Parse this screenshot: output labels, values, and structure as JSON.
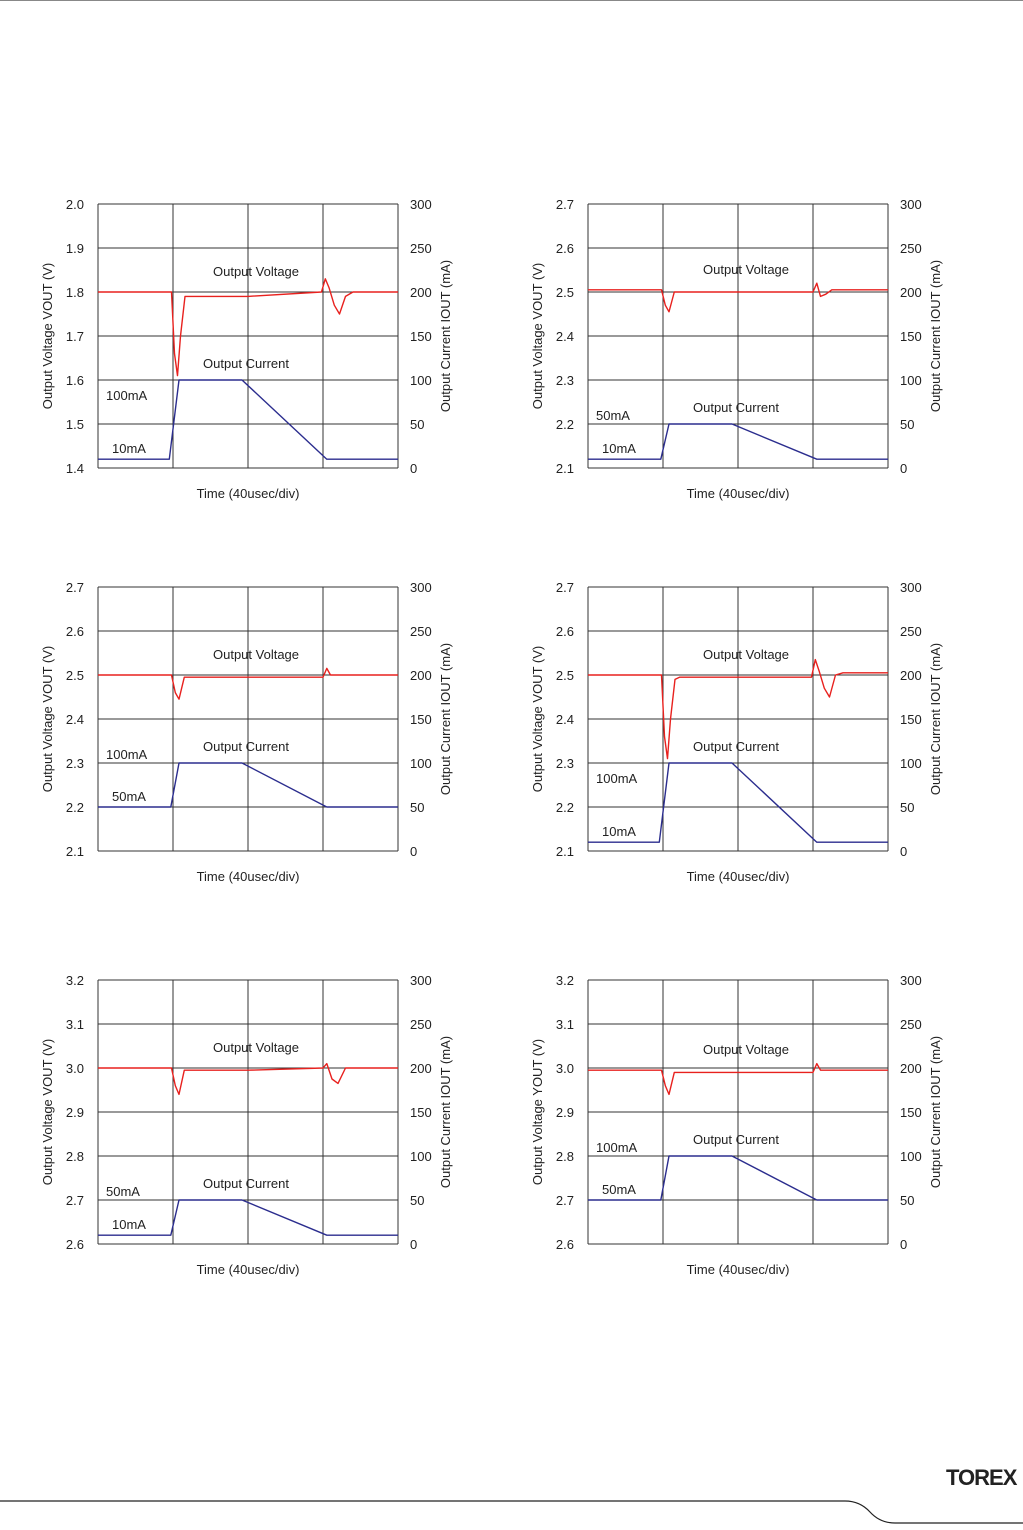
{
  "brand": {
    "logo_text": "TOREX"
  },
  "chart_data": [
    {
      "type": "line",
      "xlabel": "Time (40usec/div)",
      "ylabel": "Output Voltage VOUT (V)",
      "y2label": "Output Current IOUT (mA)",
      "ylim": [
        1.4,
        2.0
      ],
      "y_ticks": [
        "1.4",
        "1.5",
        "1.6",
        "1.7",
        "1.8",
        "1.9",
        "2.0"
      ],
      "y2lim": [
        0,
        300
      ],
      "y2_ticks": [
        "0",
        "50",
        "100",
        "150",
        "200",
        "250",
        "300"
      ],
      "x_divisions": 4,
      "annotations": {
        "voltage_label": "Output Voltage",
        "current_label": "Output Current",
        "high_current": "100mA",
        "low_current": "10mA"
      },
      "series": [
        {
          "name": "Output Voltage",
          "color": "#e8211e",
          "axis": "left",
          "x": [
            0,
            0.98,
            1.02,
            1.06,
            1.1,
            1.16,
            1.22,
            2.0,
            2.98,
            3.03,
            3.08,
            3.15,
            3.22,
            3.3,
            3.4,
            4.0
          ],
          "y": [
            1.8,
            1.8,
            1.66,
            1.61,
            1.7,
            1.79,
            1.79,
            1.79,
            1.8,
            1.83,
            1.81,
            1.77,
            1.75,
            1.79,
            1.8,
            1.8
          ]
        },
        {
          "name": "Output Current",
          "color": "#2b2d8e",
          "axis": "right",
          "x": [
            0,
            0.95,
            1.08,
            1.92,
            3.05,
            4.0
          ],
          "y": [
            10,
            10,
            100,
            100,
            10,
            10
          ]
        }
      ]
    },
    {
      "type": "line",
      "xlabel": "Time (40usec/div)",
      "ylabel": "Output Voltage VOUT (V)",
      "y2label": "Output Current IOUT (mA)",
      "ylim": [
        2.1,
        2.7
      ],
      "y_ticks": [
        "2.1",
        "2.2",
        "2.3",
        "2.4",
        "2.5",
        "2.6",
        "2.7"
      ],
      "y2lim": [
        0,
        300
      ],
      "y2_ticks": [
        "0",
        "50",
        "100",
        "150",
        "200",
        "250",
        "300"
      ],
      "x_divisions": 4,
      "annotations": {
        "voltage_label": "Output Voltage",
        "current_label": "Output Current",
        "high_current": "50mA",
        "low_current": "10mA"
      },
      "series": [
        {
          "name": "Output Voltage",
          "color": "#e8211e",
          "axis": "left",
          "x": [
            0,
            0.98,
            1.03,
            1.08,
            1.15,
            2.0,
            3.0,
            3.05,
            3.1,
            3.17,
            3.25,
            4.0
          ],
          "y": [
            2.505,
            2.505,
            2.47,
            2.455,
            2.5,
            2.5,
            2.5,
            2.52,
            2.49,
            2.495,
            2.505,
            2.505
          ]
        },
        {
          "name": "Output Current",
          "color": "#2b2d8e",
          "axis": "right",
          "x": [
            0,
            0.97,
            1.08,
            1.92,
            3.05,
            4.0
          ],
          "y": [
            10,
            10,
            50,
            50,
            10,
            10
          ]
        }
      ]
    },
    {
      "type": "line",
      "xlabel": "Time (40usec/div)",
      "ylabel": "Output Voltage VOUT (V)",
      "y2label": "Output Current IOUT (mA)",
      "ylim": [
        2.1,
        2.7
      ],
      "y_ticks": [
        "2.1",
        "2.2",
        "2.3",
        "2.4",
        "2.5",
        "2.6",
        "2.7"
      ],
      "y2lim": [
        0,
        300
      ],
      "y2_ticks": [
        "0",
        "50",
        "100",
        "150",
        "200",
        "250",
        "300"
      ],
      "x_divisions": 4,
      "annotations": {
        "voltage_label": "Output Voltage",
        "current_label": "Output Current",
        "high_current": "100mA",
        "low_current": "50mA"
      },
      "series": [
        {
          "name": "Output Voltage",
          "color": "#e8211e",
          "axis": "left",
          "x": [
            0,
            0.98,
            1.03,
            1.08,
            1.15,
            2.0,
            3.0,
            3.05,
            3.1,
            3.2,
            4.0
          ],
          "y": [
            2.5,
            2.5,
            2.46,
            2.445,
            2.495,
            2.495,
            2.495,
            2.515,
            2.5,
            2.5,
            2.5
          ]
        },
        {
          "name": "Output Current",
          "color": "#2b2d8e",
          "axis": "right",
          "x": [
            0,
            0.97,
            1.08,
            1.92,
            3.05,
            4.0
          ],
          "y": [
            50,
            50,
            100,
            100,
            50,
            50
          ]
        }
      ]
    },
    {
      "type": "line",
      "xlabel": "Time (40usec/div)",
      "ylabel": "Output Voltage VOUT (V)",
      "y2label": "Output Current IOUT (mA)",
      "ylim": [
        2.1,
        2.7
      ],
      "y_ticks": [
        "2.1",
        "2.2",
        "2.3",
        "2.4",
        "2.5",
        "2.6",
        "2.7"
      ],
      "y2lim": [
        0,
        300
      ],
      "y2_ticks": [
        "0",
        "50",
        "100",
        "150",
        "200",
        "250",
        "300"
      ],
      "x_divisions": 4,
      "annotations": {
        "voltage_label": "Output Voltage",
        "current_label": "Output Current",
        "high_current": "100mA",
        "low_current": "10mA"
      },
      "series": [
        {
          "name": "Output Voltage",
          "color": "#e8211e",
          "axis": "left",
          "x": [
            0,
            0.98,
            1.02,
            1.06,
            1.1,
            1.16,
            1.22,
            2.0,
            2.98,
            3.03,
            3.08,
            3.15,
            3.22,
            3.3,
            3.4,
            4.0
          ],
          "y": [
            2.5,
            2.5,
            2.36,
            2.31,
            2.4,
            2.49,
            2.495,
            2.495,
            2.495,
            2.535,
            2.51,
            2.47,
            2.45,
            2.5,
            2.505,
            2.505
          ]
        },
        {
          "name": "Output Current",
          "color": "#2b2d8e",
          "axis": "right",
          "x": [
            0,
            0.95,
            1.08,
            1.92,
            3.05,
            4.0
          ],
          "y": [
            10,
            10,
            100,
            100,
            10,
            10
          ]
        }
      ]
    },
    {
      "type": "line",
      "xlabel": "Time (40usec/div)",
      "ylabel": "Output Voltage VOUT (V)",
      "y2label": "Output Current IOUT (mA)",
      "ylim": [
        2.6,
        3.2
      ],
      "y_ticks": [
        "2.6",
        "2.7",
        "2.8",
        "2.9",
        "3.0",
        "3.1",
        "3.2"
      ],
      "y2lim": [
        0,
        300
      ],
      "y2_ticks": [
        "0",
        "50",
        "100",
        "150",
        "200",
        "250",
        "300"
      ],
      "x_divisions": 4,
      "annotations": {
        "voltage_label": "Output Voltage",
        "current_label": "Output Current",
        "high_current": "50mA",
        "low_current": "10mA"
      },
      "series": [
        {
          "name": "Output Voltage",
          "color": "#e8211e",
          "axis": "left",
          "x": [
            0,
            0.98,
            1.03,
            1.08,
            1.15,
            2.0,
            3.0,
            3.05,
            3.12,
            3.2,
            3.3,
            4.0
          ],
          "y": [
            3.0,
            3.0,
            2.96,
            2.94,
            2.995,
            2.995,
            3.0,
            3.01,
            2.975,
            2.965,
            3.0,
            3.0
          ]
        },
        {
          "name": "Output Current",
          "color": "#2b2d8e",
          "axis": "right",
          "x": [
            0,
            0.97,
            1.08,
            1.92,
            3.05,
            4.0
          ],
          "y": [
            10,
            10,
            50,
            50,
            10,
            10
          ]
        }
      ]
    },
    {
      "type": "line",
      "xlabel": "Time (40usec/div)",
      "ylabel": "Output Voltage YOUT (V)",
      "y2label": "Output Current IOUT (mA)",
      "ylim": [
        2.6,
        3.2
      ],
      "y_ticks": [
        "2.6",
        "2.7",
        "2.8",
        "2.9",
        "3.0",
        "3.1",
        "3.2"
      ],
      "y2lim": [
        0,
        300
      ],
      "y2_ticks": [
        "0",
        "50",
        "100",
        "150",
        "200",
        "250",
        "300"
      ],
      "x_divisions": 4,
      "annotations": {
        "voltage_label": "Output Voltage",
        "current_label": "Output Current",
        "high_current": "100mA",
        "low_current": "50mA"
      },
      "series": [
        {
          "name": "Output Voltage",
          "color": "#e8211e",
          "axis": "left",
          "x": [
            0,
            0.98,
            1.03,
            1.08,
            1.15,
            2.0,
            3.0,
            3.05,
            3.1,
            3.2,
            4.0
          ],
          "y": [
            2.995,
            2.995,
            2.96,
            2.94,
            2.99,
            2.99,
            2.99,
            3.01,
            2.995,
            2.995,
            2.995
          ]
        },
        {
          "name": "Output Current",
          "color": "#2b2d8e",
          "axis": "right",
          "x": [
            0,
            0.97,
            1.08,
            1.92,
            3.05,
            4.0
          ],
          "y": [
            50,
            50,
            100,
            100,
            50,
            50
          ]
        }
      ]
    }
  ]
}
